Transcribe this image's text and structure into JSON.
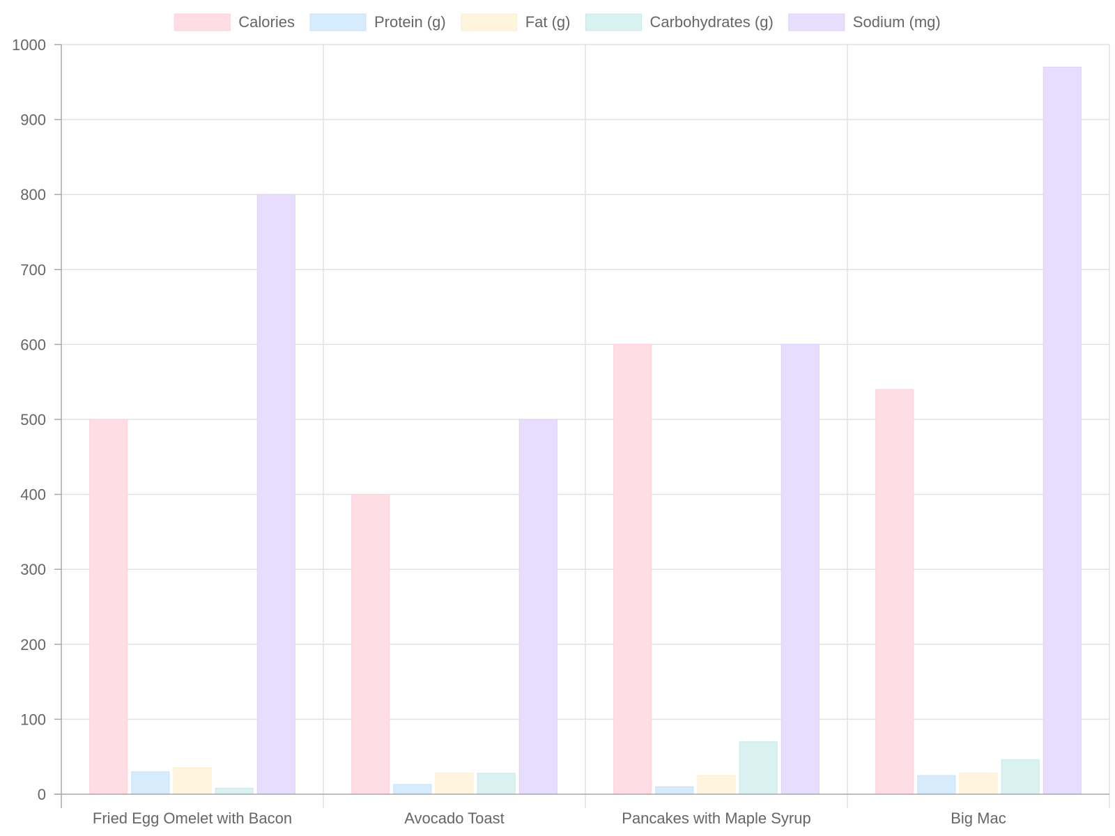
{
  "chart_data": {
    "type": "bar",
    "categories": [
      "Fried Egg Omelet with Bacon",
      "Avocado Toast",
      "Pancakes with Maple Syrup",
      "Big Mac"
    ],
    "series": [
      {
        "name": "Calories",
        "values": [
          500,
          400,
          600,
          540
        ],
        "color": "#ffdde4",
        "border": "#ffd0da"
      },
      {
        "name": "Protein (g)",
        "values": [
          30,
          13,
          10,
          25
        ],
        "color": "#d6ebfb",
        "border": "#c8e3f8"
      },
      {
        "name": "Fat (g)",
        "values": [
          35,
          28,
          25,
          28
        ],
        "color": "#fff4dd",
        "border": "#ffeccc"
      },
      {
        "name": "Carbohydrates (g)",
        "values": [
          8,
          28,
          70,
          46
        ],
        "color": "#d9f1f1",
        "border": "#c9eaea"
      },
      {
        "name": "Sodium (mg)",
        "values": [
          800,
          500,
          600,
          970
        ],
        "color": "#e7ddfd",
        "border": "#ddd0fc"
      }
    ],
    "ylim": [
      0,
      1000
    ],
    "yticks": [
      0,
      100,
      200,
      300,
      400,
      500,
      600,
      700,
      800,
      900,
      1000
    ],
    "grid": true,
    "legend_position": "top-center",
    "title": "",
    "xlabel": "",
    "ylabel": ""
  }
}
